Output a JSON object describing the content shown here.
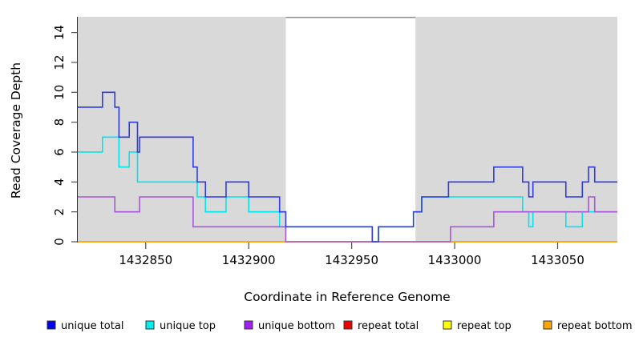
{
  "chart_data": {
    "type": "line",
    "subtype": "step-coverage",
    "title": "",
    "xlabel": "Coordinate in Reference Genome",
    "ylabel": "Read Coverage Depth",
    "xlim": [
      1432817,
      1433079
    ],
    "ylim": [
      0,
      15.05
    ],
    "x_ticks": [
      "1432850",
      "1432900",
      "1432950",
      "1433000",
      "1433050"
    ],
    "x_tick_values": [
      1432850,
      1432900,
      1432950,
      1433000,
      1433050
    ],
    "y_ticks": [
      "0",
      "2",
      "4",
      "6",
      "8",
      "10",
      "12",
      "14"
    ],
    "y_tick_values": [
      0,
      2,
      4,
      6,
      8,
      10,
      12,
      14
    ],
    "grid": "off",
    "plot_background": "#D9D9D9",
    "gap_region": {
      "from": 1432918,
      "to": 1432981,
      "fill": "#FFFFFF",
      "top_border_color": "#8C8C8C"
    },
    "legend_position": "bottom",
    "legend": [
      {
        "label": "unique total",
        "color": "#0000EE"
      },
      {
        "label": "unique top",
        "color": "#00EEEE"
      },
      {
        "label": "unique bottom",
        "color": "#A020F0"
      },
      {
        "label": "repeat total",
        "color": "#EE0000"
      },
      {
        "label": "repeat top",
        "color": "#FFFF00"
      },
      {
        "label": "repeat bottom",
        "color": "#FFA500"
      }
    ],
    "series": [
      {
        "name": "repeat total",
        "line_color": "#DD0000",
        "steps": [
          [
            1432817,
            1433079,
            0
          ]
        ]
      },
      {
        "name": "repeat top",
        "line_color": "#FFFF00",
        "steps": [
          [
            1432817,
            1433079,
            0
          ]
        ]
      },
      {
        "name": "repeat bottom",
        "line_color": "#FFA500",
        "steps": [
          [
            1432817,
            1433079,
            0
          ]
        ]
      },
      {
        "name": "unique top",
        "line_color": "#00E5EE",
        "steps": [
          [
            1432817,
            1432829,
            6
          ],
          [
            1432829,
            1432837,
            7
          ],
          [
            1432837,
            1432842,
            5
          ],
          [
            1432842,
            1432846,
            6
          ],
          [
            1432846,
            1432875,
            4
          ],
          [
            1432875,
            1432879,
            3
          ],
          [
            1432879,
            1432889,
            2
          ],
          [
            1432889,
            1432900,
            3
          ],
          [
            1432900,
            1432915,
            2
          ],
          [
            1432915,
            1432960,
            1
          ],
          [
            1432960,
            1432963,
            0
          ],
          [
            1432963,
            1432980,
            1
          ],
          [
            1432980,
            1432984,
            2
          ],
          [
            1432984,
            1433033,
            3
          ],
          [
            1433033,
            1433036,
            2
          ],
          [
            1433036,
            1433038,
            1
          ],
          [
            1433038,
            1433054,
            2
          ],
          [
            1433054,
            1433062,
            1
          ],
          [
            1433062,
            1433079,
            2
          ]
        ]
      },
      {
        "name": "unique bottom",
        "line_color": "#A855DC",
        "steps": [
          [
            1432817,
            1432835,
            3
          ],
          [
            1432835,
            1432847,
            2
          ],
          [
            1432847,
            1432873,
            3
          ],
          [
            1432873,
            1432918,
            1
          ],
          [
            1432918,
            1432998,
            0
          ],
          [
            1432998,
            1433019,
            1
          ],
          [
            1433019,
            1433065,
            2
          ],
          [
            1433065,
            1433068,
            3
          ],
          [
            1433068,
            1433079,
            2
          ]
        ]
      },
      {
        "name": "unique total",
        "line_color": "#2E3BE2",
        "steps": [
          [
            1432817,
            1432829,
            9
          ],
          [
            1432829,
            1432835,
            10
          ],
          [
            1432835,
            1432837,
            9
          ],
          [
            1432837,
            1432842,
            7
          ],
          [
            1432842,
            1432846,
            8
          ],
          [
            1432846,
            1432847,
            6
          ],
          [
            1432847,
            1432873,
            7
          ],
          [
            1432873,
            1432875,
            5
          ],
          [
            1432875,
            1432879,
            4
          ],
          [
            1432879,
            1432889,
            3
          ],
          [
            1432889,
            1432900,
            4
          ],
          [
            1432900,
            1432915,
            3
          ],
          [
            1432915,
            1432918,
            2
          ],
          [
            1432918,
            1432960,
            1
          ],
          [
            1432960,
            1432963,
            0
          ],
          [
            1432963,
            1432980,
            1
          ],
          [
            1432980,
            1432984,
            2
          ],
          [
            1432984,
            1432997,
            3
          ],
          [
            1432997,
            1433019,
            4
          ],
          [
            1433019,
            1433033,
            5
          ],
          [
            1433033,
            1433036,
            4
          ],
          [
            1433036,
            1433038,
            3
          ],
          [
            1433038,
            1433054,
            4
          ],
          [
            1433054,
            1433062,
            3
          ],
          [
            1433062,
            1433065,
            4
          ],
          [
            1433065,
            1433068,
            5
          ],
          [
            1433068,
            1433079,
            4
          ]
        ]
      }
    ]
  }
}
